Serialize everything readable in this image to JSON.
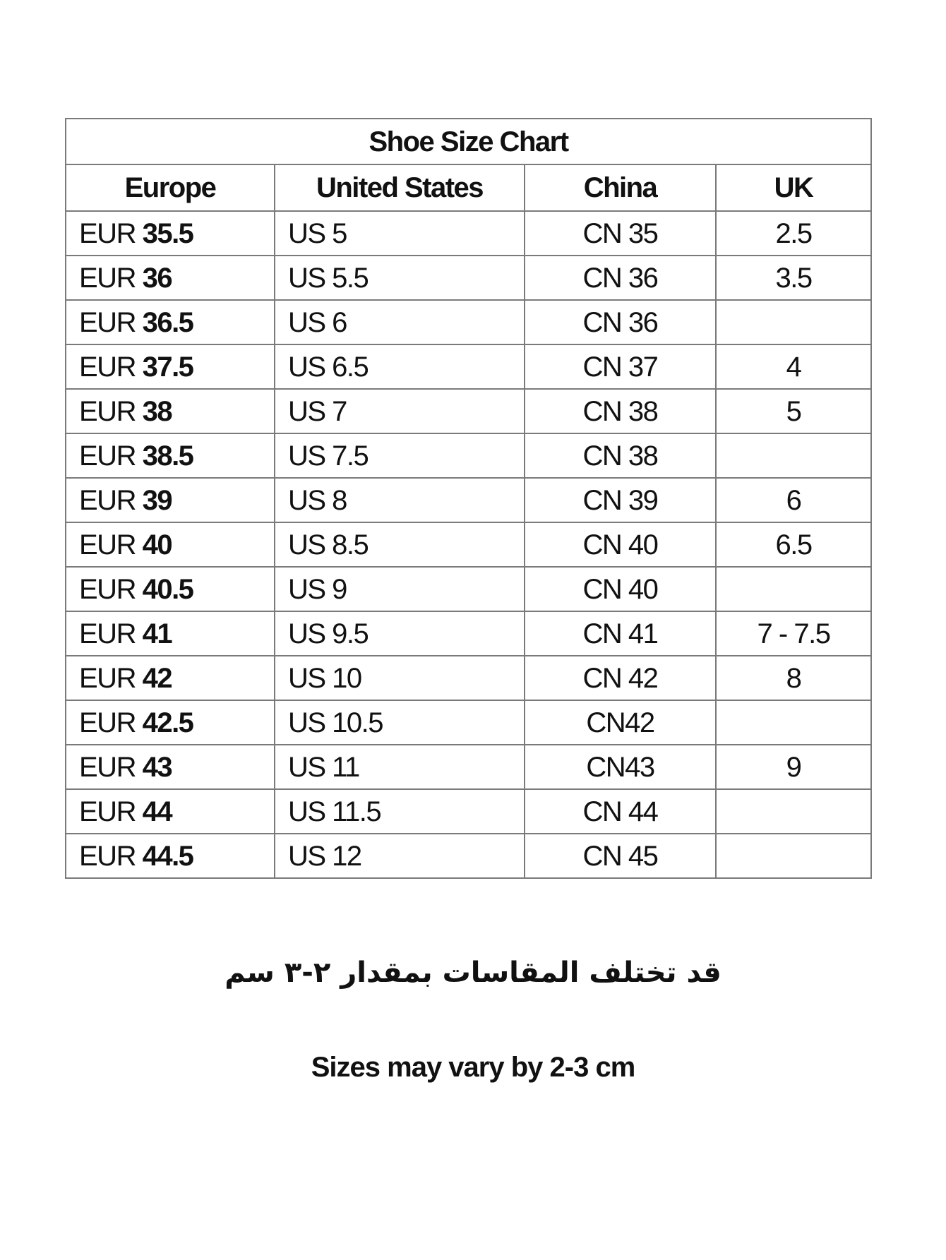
{
  "title": "Shoe Size Chart",
  "headers": [
    "Europe",
    "United States",
    "China",
    "UK"
  ],
  "rows": [
    {
      "eu_prefix": "EUR",
      "eu": "35.5",
      "us": "US 5",
      "cn": "CN 35",
      "uk": "2.5"
    },
    {
      "eu_prefix": "EUR",
      "eu": "36",
      "us": "US 5.5",
      "cn": "CN 36",
      "uk": "3.5"
    },
    {
      "eu_prefix": "EUR",
      "eu": "36.5",
      "us": "US 6",
      "cn": "CN 36",
      "uk": ""
    },
    {
      "eu_prefix": "EUR",
      "eu": "37.5",
      "us": "US 6.5",
      "cn": "CN 37",
      "uk": "4"
    },
    {
      "eu_prefix": "EUR",
      "eu": "38",
      "us": "US 7",
      "cn": "CN 38",
      "uk": "5"
    },
    {
      "eu_prefix": "EUR",
      "eu": "38.5",
      "us": "US 7.5",
      "cn": "CN 38",
      "uk": ""
    },
    {
      "eu_prefix": "EUR",
      "eu": "39",
      "us": "US 8",
      "cn": "CN 39",
      "uk": "6"
    },
    {
      "eu_prefix": "EUR",
      "eu": "40",
      "us": "US 8.5",
      "cn": "CN 40",
      "uk": "6.5"
    },
    {
      "eu_prefix": "EUR",
      "eu": "40.5",
      "us": "US 9",
      "cn": "CN 40",
      "uk": ""
    },
    {
      "eu_prefix": "EUR",
      "eu": "41",
      "us": "US 9.5",
      "cn": "CN 41",
      "uk": "7 - 7.5"
    },
    {
      "eu_prefix": "EUR",
      "eu": "42",
      "us": "US 10",
      "cn": "CN 42",
      "uk": "8"
    },
    {
      "eu_prefix": "EUR",
      "eu": "42.5",
      "us": "US 10.5",
      "cn": "CN42",
      "uk": ""
    },
    {
      "eu_prefix": "EUR",
      "eu": "43",
      "us": "US 11",
      "cn": "CN43",
      "uk": "9"
    },
    {
      "eu_prefix": "EUR",
      "eu": "44",
      "us": "US 11.5",
      "cn": "CN 44",
      "uk": ""
    },
    {
      "eu_prefix": "EUR",
      "eu": "44.5",
      "us": "US 12",
      "cn": "CN 45",
      "uk": ""
    }
  ],
  "note_arabic": "قد تختلف المقاسات بمقدار ٢-٣ سم",
  "note_english": "Sizes may vary by 2-3 cm"
}
